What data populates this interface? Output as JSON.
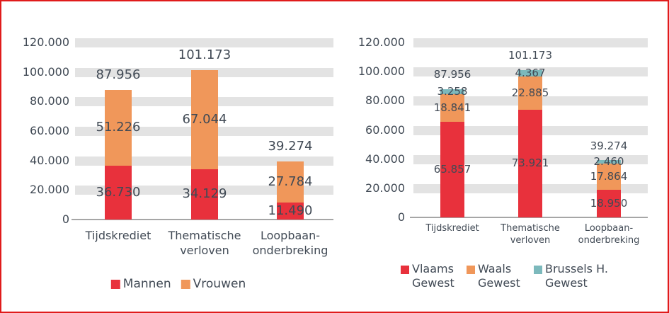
{
  "frame": {
    "border_color": "#e01b1b",
    "background": "#ffffff"
  },
  "colors": {
    "text": "#414a55",
    "grid_band": "#e3e3e3",
    "axis_line": "#a6a6a6",
    "red": "#e8313c",
    "orange": "#f0975a",
    "teal": "#7cb9bc"
  },
  "chart_data": [
    {
      "type": "bar",
      "stacked": true,
      "title": "",
      "xlabel": "",
      "ylabel": "",
      "ylim": [
        0,
        120000
      ],
      "grid": "horizontal-bands",
      "legend_position": "bottom",
      "categories": [
        "Tijdskrediet",
        "Thematische verloven",
        "Loopbaan-onderbreking"
      ],
      "category_labels": [
        [
          "Tijdskrediet"
        ],
        [
          "Thematische",
          "verloven"
        ],
        [
          "Loopbaan-",
          "onderbreking"
        ]
      ],
      "series": [
        {
          "name": "Mannen",
          "color": "#e8313c",
          "values": [
            36730,
            34129,
            11490
          ],
          "value_labels": [
            "36.730",
            "34.129",
            "11.490"
          ]
        },
        {
          "name": "Vrouwen",
          "color": "#f0975a",
          "values": [
            51226,
            67044,
            27784
          ],
          "value_labels": [
            "51.226",
            "67.044",
            "27.784"
          ]
        }
      ],
      "totals": [
        87956,
        101173,
        39274
      ],
      "total_labels": [
        "87.956",
        "101.173",
        "39.274"
      ],
      "y_ticks": [
        {
          "value": 0,
          "label": "0"
        },
        {
          "value": 20000,
          "label": "20.000"
        },
        {
          "value": 40000,
          "label": "40.000"
        },
        {
          "value": 60000,
          "label": "60.000"
        },
        {
          "value": 80000,
          "label": "80.000"
        },
        {
          "value": 100000,
          "label": "100.000"
        },
        {
          "value": 120000,
          "label": "120.000"
        }
      ],
      "legend": [
        {
          "label_lines": [
            "Mannen"
          ],
          "color": "#e8313c"
        },
        {
          "label_lines": [
            "Vrouwen"
          ],
          "color": "#f0975a"
        }
      ]
    },
    {
      "type": "bar",
      "stacked": true,
      "title": "",
      "xlabel": "",
      "ylabel": "",
      "ylim": [
        0,
        120000
      ],
      "grid": "horizontal-bands",
      "legend_position": "bottom",
      "categories": [
        "Tijdskrediet",
        "Thematische verloven",
        "Loopbaan-onderbreking"
      ],
      "category_labels": [
        [
          "Tijdskrediet"
        ],
        [
          "Thematische",
          "verloven"
        ],
        [
          "Loopbaan-",
          "onderbreking"
        ]
      ],
      "series": [
        {
          "name": "Vlaams Gewest",
          "color": "#e8313c",
          "values": [
            65857,
            73921,
            18950
          ],
          "value_labels": [
            "65.857",
            "73.921",
            "18.950"
          ]
        },
        {
          "name": "Waals Gewest",
          "color": "#f0975a",
          "values": [
            18841,
            22885,
            17864
          ],
          "value_labels": [
            "18.841",
            "22.885",
            "17.864"
          ]
        },
        {
          "name": "Brussels H. Gewest",
          "color": "#7cb9bc",
          "values": [
            3258,
            4367,
            2460
          ],
          "value_labels": [
            "3.258",
            "4.367",
            "2.460"
          ]
        }
      ],
      "totals": [
        87956,
        101173,
        39274
      ],
      "total_labels": [
        "87.956",
        "101.173",
        "39.274"
      ],
      "y_ticks": [
        {
          "value": 0,
          "label": "0"
        },
        {
          "value": 20000,
          "label": "20.000"
        },
        {
          "value": 40000,
          "label": "40.000"
        },
        {
          "value": 60000,
          "label": "60.000"
        },
        {
          "value": 80000,
          "label": "80.000"
        },
        {
          "value": 100000,
          "label": "100.000"
        },
        {
          "value": 120000,
          "label": "120.000"
        }
      ],
      "legend": [
        {
          "label_lines": [
            "Vlaams",
            "Gewest"
          ],
          "color": "#e8313c"
        },
        {
          "label_lines": [
            "Waals",
            "Gewest"
          ],
          "color": "#f0975a"
        },
        {
          "label_lines": [
            "Brussels H.",
            "Gewest"
          ],
          "color": "#7cb9bc"
        }
      ]
    }
  ]
}
